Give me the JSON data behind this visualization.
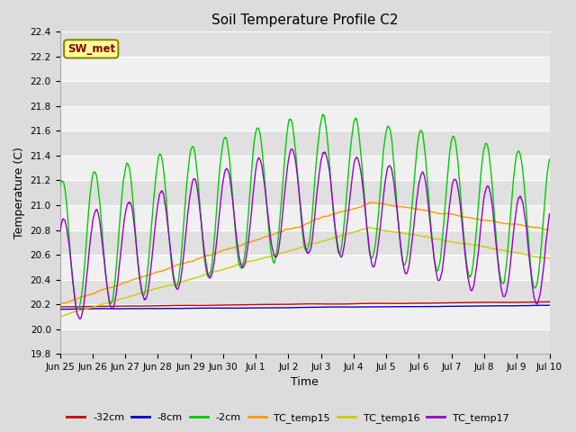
{
  "title": "Soil Temperature Profile C2",
  "xlabel": "Time",
  "ylabel": "Temperature (C)",
  "ylim": [
    19.8,
    22.4
  ],
  "fig_bg": "#dcdcdc",
  "plot_bg_light": "#f0f0f0",
  "plot_bg_dark": "#e0e0e0",
  "annotation_text": "SW_met",
  "annotation_bg": "#ffff99",
  "annotation_border": "#888800",
  "annotation_text_color": "#880000",
  "series": {
    "-32cm": {
      "color": "#cc0000",
      "lw": 1.0
    },
    "-8cm": {
      "color": "#0000cc",
      "lw": 1.0
    },
    "-2cm": {
      "color": "#00cc00",
      "lw": 1.0
    },
    "TC_temp15": {
      "color": "#ff9900",
      "lw": 1.0
    },
    "TC_temp16": {
      "color": "#cccc00",
      "lw": 1.0
    },
    "TC_temp17": {
      "color": "#9900cc",
      "lw": 1.0
    }
  },
  "xtick_labels": [
    "Jun 25",
    "Jun 26",
    "Jun 27",
    "Jun 28",
    "Jun 29",
    "Jun 30",
    "Jul 1",
    "Jul 2",
    "Jul 3",
    "Jul 4",
    "Jul 5",
    "Jul 6",
    "Jul 7",
    "Jul 8",
    "Jul 9",
    "Jul 10"
  ],
  "ytick_labels": [
    "19.8",
    "20.0",
    "20.2",
    "20.4",
    "20.6",
    "20.8",
    "21.0",
    "21.2",
    "21.4",
    "21.6",
    "21.8",
    "22.0",
    "22.2",
    "22.4"
  ],
  "ytick_values": [
    19.8,
    20.0,
    20.2,
    20.4,
    20.6,
    20.8,
    21.0,
    21.2,
    21.4,
    21.6,
    21.8,
    22.0,
    22.2,
    22.4
  ]
}
